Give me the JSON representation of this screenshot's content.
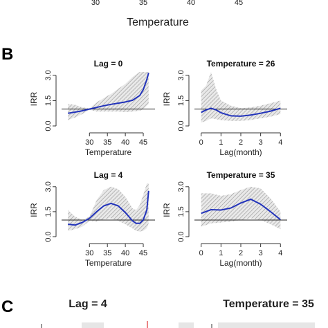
{
  "figure": {
    "top_axis_ticks": [
      "30",
      "35",
      "40",
      "45"
    ],
    "top_axis_label": "Temperature",
    "panel_b_label": "B",
    "panel_c_label": "C",
    "panel_c_titles": [
      "Lag = 4",
      "Temperature = 35"
    ]
  },
  "colors": {
    "line": "#2233bb",
    "band": "#9a9a9a",
    "reference": "#222222"
  },
  "chart_data": [
    {
      "type": "line",
      "title": "Lag = 0",
      "xlabel": "Temperature",
      "ylabel": "IRR",
      "xlim": [
        23,
        47.5
      ],
      "ylim": [
        0,
        3.2
      ],
      "xticks": [
        30,
        35,
        40,
        45
      ],
      "yticks": [
        0.0,
        1.5,
        3.0
      ],
      "yticklabels": [
        "0.0",
        "1.5",
        "3.0"
      ],
      "reference_y": 1,
      "series": [
        {
          "x": [
            24,
            26,
            28,
            30,
            32,
            34,
            36,
            38,
            40,
            42,
            44,
            45,
            46,
            46.5
          ],
          "values": [
            0.75,
            0.82,
            0.9,
            1.0,
            1.1,
            1.2,
            1.28,
            1.35,
            1.42,
            1.52,
            1.8,
            2.15,
            2.75,
            3.15
          ],
          "lower": [
            0.35,
            0.5,
            0.7,
            0.95,
            0.85,
            0.85,
            0.85,
            0.85,
            0.82,
            0.85,
            0.9,
            1.0,
            1.2,
            1.3
          ],
          "upper": [
            1.3,
            1.25,
            1.1,
            1.05,
            1.4,
            1.65,
            1.9,
            2.2,
            2.5,
            2.9,
            3.2,
            3.2,
            3.2,
            3.2
          ]
        }
      ]
    },
    {
      "type": "line",
      "title": "Temperature = 26",
      "xlabel": "Lag(month)",
      "ylabel": "IRR",
      "xlim": [
        -0.2,
        4.2
      ],
      "ylim": [
        0,
        3.2
      ],
      "xticks": [
        0,
        1,
        2,
        3,
        4
      ],
      "yticks": [
        0.0,
        1.5,
        3.0
      ],
      "yticklabels": [
        "0.0",
        "1.5",
        "3.0"
      ],
      "reference_y": 1,
      "series": [
        {
          "x": [
            0,
            0.25,
            0.5,
            0.75,
            1,
            1.5,
            2,
            2.5,
            3,
            3.5,
            4
          ],
          "values": [
            0.8,
            0.95,
            1.05,
            0.95,
            0.78,
            0.6,
            0.58,
            0.65,
            0.75,
            0.88,
            1.05
          ],
          "lower": [
            0.2,
            0.3,
            0.45,
            0.4,
            0.35,
            0.3,
            0.3,
            0.35,
            0.45,
            0.55,
            0.7
          ],
          "upper": [
            2.1,
            2.4,
            3.2,
            2.2,
            1.5,
            1.2,
            1.05,
            1.1,
            1.2,
            1.35,
            1.5
          ]
        }
      ]
    },
    {
      "type": "line",
      "title": "Lag = 4",
      "xlabel": "Temperature",
      "ylabel": "IRR",
      "xlim": [
        23,
        47.5
      ],
      "ylim": [
        0,
        3.2
      ],
      "xticks": [
        30,
        35,
        40,
        45
      ],
      "yticks": [
        0.0,
        1.5,
        3.0
      ],
      "yticklabels": [
        "0.0",
        "1.5",
        "3.0"
      ],
      "reference_y": 1,
      "series": [
        {
          "x": [
            24,
            26,
            28,
            30,
            32,
            34,
            36,
            38,
            40,
            42,
            43,
            44,
            45,
            46,
            46.5
          ],
          "values": [
            0.75,
            0.7,
            0.85,
            1.1,
            1.5,
            1.85,
            2.0,
            1.85,
            1.45,
            0.95,
            0.8,
            0.8,
            1.0,
            1.6,
            2.75
          ],
          "lower": [
            0.35,
            0.45,
            0.6,
            0.95,
            0.9,
            1.05,
            1.1,
            0.95,
            0.75,
            0.5,
            0.35,
            0.3,
            0.35,
            0.5,
            0.8
          ],
          "upper": [
            1.6,
            1.2,
            1.0,
            1.2,
            2.2,
            2.8,
            3.0,
            2.85,
            2.4,
            1.7,
            1.6,
            1.9,
            2.5,
            3.2,
            3.2
          ]
        }
      ]
    },
    {
      "type": "line",
      "title": "Temperature = 35",
      "xlabel": "Lag(month)",
      "ylabel": "IRR",
      "xlim": [
        -0.2,
        4.2
      ],
      "ylim": [
        0,
        3.2
      ],
      "xticks": [
        0,
        1,
        2,
        3,
        4
      ],
      "yticks": [
        0.0,
        1.5,
        3.0
      ],
      "yticklabels": [
        "0.0",
        "1.5",
        "3.0"
      ],
      "reference_y": 1,
      "series": [
        {
          "x": [
            0,
            0.5,
            1,
            1.5,
            2,
            2.5,
            3,
            3.5,
            4
          ],
          "values": [
            1.4,
            1.62,
            1.6,
            1.72,
            2.02,
            2.25,
            1.95,
            1.5,
            1.02
          ],
          "lower": [
            0.6,
            0.8,
            0.85,
            0.9,
            1.0,
            1.1,
            1.0,
            0.75,
            0.45
          ],
          "upper": [
            2.6,
            2.6,
            2.45,
            2.55,
            2.8,
            3.0,
            2.9,
            2.3,
            1.5
          ]
        }
      ]
    }
  ]
}
